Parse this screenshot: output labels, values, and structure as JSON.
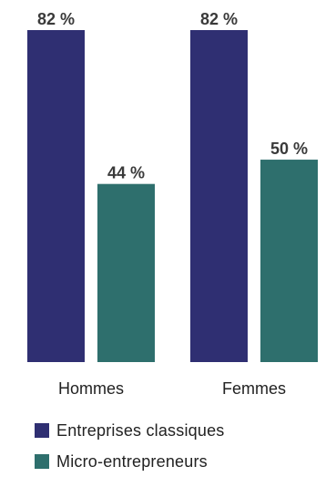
{
  "chart_data": {
    "type": "bar",
    "categories": [
      "Hommes",
      "Femmes"
    ],
    "series": [
      {
        "name": "Entreprises classiques",
        "values": [
          82,
          82
        ],
        "color": "#2f2f72"
      },
      {
        "name": "Micro-entrepreneurs",
        "values": [
          44,
          50
        ],
        "color": "#2e6f6d"
      }
    ],
    "value_labels": [
      [
        "82 %",
        "82 %"
      ],
      [
        "44 %",
        "50 %"
      ]
    ],
    "ylim": [
      0,
      82
    ],
    "grid": false,
    "legend_position": "bottom-left"
  }
}
